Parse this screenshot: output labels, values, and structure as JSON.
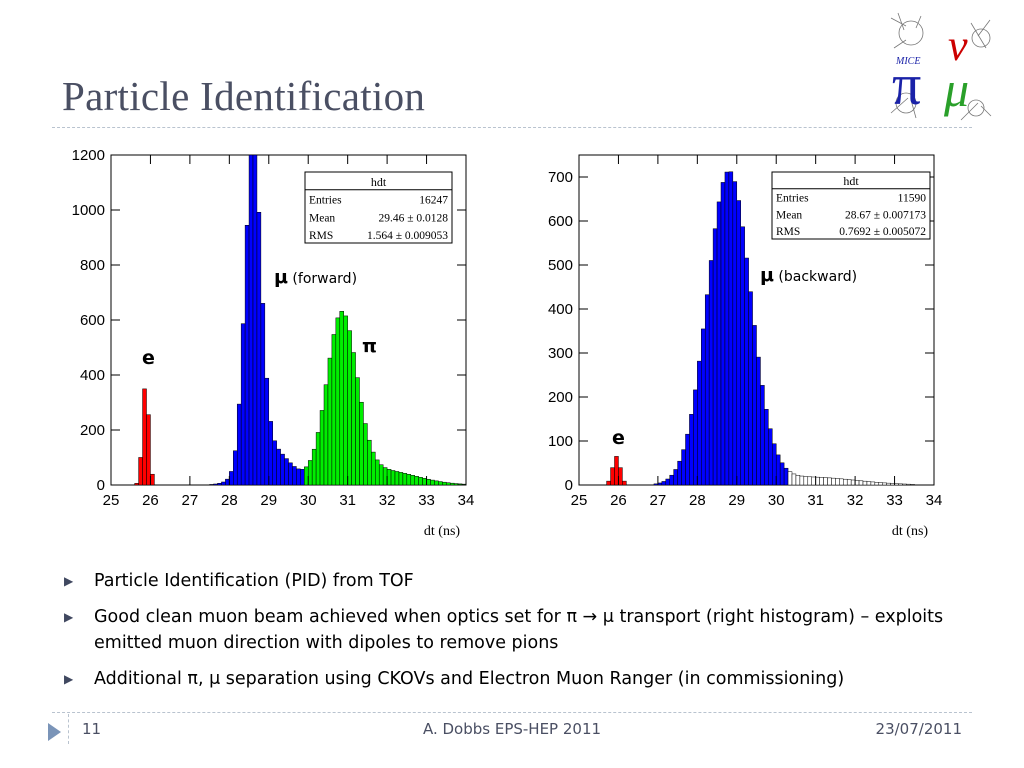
{
  "slide": {
    "title": "Particle Identification",
    "bullets": [
      {
        "text": "Particle Identification (PID) from TOF"
      },
      {
        "text": "Good clean muon beam achieved when optics set for π → μ transport (right histogram) – exploits emitted muon direction with dipoles to remove pions"
      },
      {
        "text": "Additional π, μ separation using CKOVs and Electron Muon Ranger (in commissioning)"
      }
    ],
    "footer": {
      "page": "11",
      "center": "A. Dobbs EPS-HEP 2011",
      "date": "23/07/2011"
    },
    "logo": {
      "letters": "πνμ",
      "word": "MICE"
    }
  },
  "colors": {
    "title": "#4a4f63",
    "electron": "#ff0000",
    "muon": "#0000ff",
    "pion": "#00ee00",
    "tail": "#ffffff"
  },
  "chart_data": [
    {
      "type": "histogram",
      "xlabel": "dt (ns)",
      "ylabel": "",
      "xlim": [
        25,
        34
      ],
      "ylim": [
        0,
        1200
      ],
      "xticks": [
        25,
        26,
        27,
        28,
        29,
        30,
        31,
        32,
        33,
        34
      ],
      "yticks": [
        0,
        200,
        400,
        600,
        800,
        1000,
        1200
      ],
      "stats": {
        "title": "hdt",
        "rows": [
          [
            "Entries",
            "16247"
          ],
          [
            "Mean",
            "29.46 ± 0.0128"
          ],
          [
            "RMS",
            "1.564 ± 0.009053"
          ]
        ]
      },
      "annotations": [
        {
          "text": "μ",
          "suffix": " (forward)"
        },
        {
          "text": "π",
          "suffix": ""
        },
        {
          "text": "e",
          "suffix": ""
        }
      ],
      "series": [
        {
          "name": "e",
          "color": "#ff0000",
          "peaks": [
            {
              "mu": 25.88,
              "sigma": 0.08,
              "amp": 375
            }
          ]
        },
        {
          "name": "μ",
          "color": "#0000ff",
          "peaks": [
            {
              "mu": 28.6,
              "sigma": 0.2,
              "amp": 1150
            },
            {
              "mu": 29.0,
              "sigma": 0.5,
              "amp": 140
            }
          ]
        },
        {
          "name": "π",
          "color": "#00ee00",
          "peaks": [
            {
              "mu": 30.85,
              "sigma": 0.38,
              "amp": 600
            },
            {
              "mu": 31.8,
              "sigma": 0.9,
              "amp": 55
            }
          ]
        }
      ]
    },
    {
      "type": "histogram",
      "xlabel": "dt (ns)",
      "ylabel": "",
      "xlim": [
        25,
        34
      ],
      "ylim": [
        0,
        750
      ],
      "xticks": [
        25,
        26,
        27,
        28,
        29,
        30,
        31,
        32,
        33,
        34
      ],
      "yticks": [
        0,
        100,
        200,
        300,
        400,
        500,
        600,
        700
      ],
      "stats": {
        "title": "hdt",
        "rows": [
          [
            "Entries",
            "11590"
          ],
          [
            "Mean",
            "28.67 ± 0.007173"
          ],
          [
            "RMS",
            "0.7692 ± 0.005072"
          ]
        ]
      },
      "annotations": [
        {
          "text": "μ",
          "suffix": " (backward)"
        },
        {
          "text": "e",
          "suffix": ""
        }
      ],
      "series": [
        {
          "name": "e",
          "color": "#ff0000",
          "peaks": [
            {
              "mu": 25.95,
              "sigma": 0.1,
              "amp": 65
            }
          ]
        },
        {
          "name": "μ",
          "color": "#0000ff",
          "peaks": [
            {
              "mu": 28.8,
              "sigma": 0.55,
              "amp": 710
            }
          ]
        },
        {
          "name": "tail",
          "color": "#ffffff",
          "peaks": [
            {
              "mu": 30.8,
              "sigma": 1.2,
              "amp": 18
            }
          ]
        }
      ]
    }
  ]
}
